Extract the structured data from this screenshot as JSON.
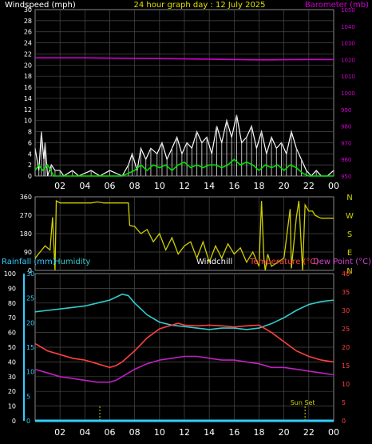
{
  "header": {
    "left": "Windspeed (mph)",
    "center": "24 hour graph day : 12 July 2025",
    "right": "Barometer (mb)"
  },
  "colors": {
    "background": "#000000",
    "panel_bg": "#000000",
    "grid": "#4a4a4a",
    "wind": "#ffffff",
    "wind_avg": "#00e000",
    "barometer": "#d000d0",
    "direction": "#d0d000",
    "rain": "#33ccff",
    "humidity": "#33cccc",
    "temperature": "#ff4040",
    "dewpoint": "#c020c0",
    "windchill": "#ffffff",
    "sun": "#d0d000"
  },
  "chart_data": [
    {
      "type": "line",
      "panel": "wind-barometer",
      "x_ticks": [
        "02",
        "04",
        "06",
        "08",
        "10",
        "12",
        "14",
        "16",
        "18",
        "20",
        "22",
        "00"
      ],
      "y_left": {
        "label": "Windspeed (mph)",
        "ticks": [
          "0",
          "2",
          "4",
          "6",
          "8",
          "10",
          "12",
          "14",
          "16",
          "18",
          "20",
          "22",
          "24",
          "26",
          "28",
          "30"
        ],
        "range": [
          0,
          30
        ]
      },
      "y_right": {
        "label": "Barometer (mb)",
        "ticks": [
          "950",
          "960",
          "970",
          "980",
          "990",
          "1000",
          "1010",
          "1020",
          "1030",
          "1040",
          "1050"
        ],
        "range": [
          950,
          1050
        ],
        "top_tick": "1050"
      },
      "x_range": [
        0,
        24
      ],
      "series": [
        {
          "name": "Windspeed (mph)",
          "role": "gust",
          "x": [
            0,
            0.3,
            0.5,
            0.7,
            0.8,
            1.0,
            1.3,
            1.6,
            2.0,
            2.3,
            3.0,
            3.5,
            4.5,
            5.2,
            6.0,
            7.0,
            7.5,
            7.8,
            8.2,
            8.5,
            8.9,
            9.3,
            9.8,
            10.2,
            10.6,
            11.0,
            11.4,
            11.8,
            12.2,
            12.6,
            13.0,
            13.4,
            13.8,
            14.2,
            14.6,
            15.0,
            15.4,
            15.8,
            16.2,
            16.6,
            17.0,
            17.4,
            17.8,
            18.2,
            18.6,
            19.0,
            19.4,
            19.8,
            20.2,
            20.6,
            21.0,
            21.4,
            21.8,
            22.2,
            22.6,
            23.0,
            23.5,
            24.0
          ],
          "values": [
            5,
            1,
            8,
            3,
            6,
            0,
            2,
            1,
            1,
            0,
            1,
            0,
            1,
            0,
            1,
            0,
            2,
            4,
            1,
            5,
            3,
            5,
            4,
            6,
            3,
            5,
            7,
            4,
            6,
            5,
            8,
            6,
            7,
            4,
            9,
            6,
            10,
            7,
            11,
            6,
            7,
            9,
            5,
            8,
            4,
            7,
            5,
            6,
            4,
            8,
            5,
            3,
            1,
            0,
            1,
            0,
            0,
            1
          ]
        },
        {
          "name": "Average",
          "role": "avg",
          "x": [
            0,
            0.3,
            0.6,
            1.0,
            1.5,
            2.0,
            3.0,
            4.0,
            5.0,
            6.0,
            7.0,
            7.5,
            8.0,
            8.5,
            9.0,
            9.5,
            10.0,
            10.5,
            11.0,
            11.5,
            12.0,
            12.5,
            13.0,
            13.5,
            14.0,
            14.5,
            15.0,
            15.5,
            16.0,
            16.5,
            17.0,
            17.5,
            18.0,
            18.5,
            19.0,
            19.5,
            20.0,
            20.5,
            21.0,
            21.5,
            22.0,
            23.0,
            24.0
          ],
          "values": [
            1,
            2,
            1,
            2,
            0,
            0,
            0,
            0,
            0,
            0,
            0,
            0.5,
            1,
            2,
            1,
            2,
            1.5,
            2,
            1,
            2,
            2.5,
            1.5,
            2,
            1.5,
            2,
            2,
            1.5,
            2,
            3,
            2,
            2.5,
            2,
            1,
            2,
            1.5,
            2,
            1,
            2,
            1.5,
            0.5,
            0,
            0,
            0
          ]
        },
        {
          "name": "Barometer (mb)",
          "axis": "right",
          "x": [
            0,
            2,
            4,
            6,
            8,
            10,
            12,
            14,
            16,
            18,
            19,
            20,
            22,
            24
          ],
          "values": [
            1021,
            1021,
            1021,
            1020.8,
            1020.7,
            1020.6,
            1020.4,
            1020.2,
            1020,
            1019.8,
            1019.8,
            1019.9,
            1020,
            1020
          ]
        }
      ]
    },
    {
      "type": "line",
      "panel": "wind-direction",
      "x_ticks": [
        "02",
        "04",
        "06",
        "08",
        "10",
        "12",
        "14",
        "16",
        "18",
        "20",
        "22",
        "00"
      ],
      "y_left": {
        "ticks": [
          "0",
          "90",
          "180",
          "270",
          "360"
        ],
        "range": [
          0,
          360
        ]
      },
      "y_right": {
        "ticks": [
          "N",
          "W",
          "S",
          "E",
          "N"
        ]
      },
      "x_range": [
        0,
        24
      ],
      "series": [
        {
          "name": "Direction",
          "x": [
            0,
            0.4,
            0.8,
            1.2,
            1.4,
            1.6,
            1.7,
            2.0,
            2.5,
            3.0,
            3.5,
            4.0,
            4.5,
            5.0,
            5.5,
            6.0,
            7.0,
            7.5,
            7.6,
            8.0,
            8.5,
            9.0,
            9.5,
            10.0,
            10.5,
            11.0,
            11.5,
            12.0,
            12.5,
            13.0,
            13.5,
            14.0,
            14.5,
            15.0,
            15.5,
            16.0,
            16.5,
            17.0,
            17.5,
            18.0,
            18.2,
            18.4,
            18.5,
            18.7,
            19.0,
            19.5,
            20.0,
            20.5,
            20.6,
            21.0,
            21.2,
            21.5,
            21.7,
            22.0,
            22.3,
            22.5,
            22.8,
            23.0,
            24.0
          ],
          "values": [
            60,
            90,
            120,
            100,
            260,
            0,
            340,
            330,
            330,
            330,
            330,
            330,
            330,
            335,
            330,
            330,
            330,
            330,
            220,
            215,
            180,
            200,
            140,
            180,
            100,
            160,
            80,
            120,
            140,
            60,
            140,
            40,
            120,
            60,
            130,
            80,
            110,
            40,
            90,
            20,
            340,
            50,
            0,
            80,
            20,
            40,
            60,
            300,
            10,
            260,
            340,
            0,
            320,
            290,
            290,
            270,
            260,
            255,
            255
          ]
        }
      ]
    },
    {
      "type": "line",
      "panel": "temperature-humidity",
      "legend": [
        "Rainfall (mm)",
        "Humidity",
        "Windchill",
        "Temperature (°C)",
        "Dew Point (°C)"
      ],
      "x_ticks": [
        "02",
        "04",
        "06",
        "08",
        "10",
        "12",
        "14",
        "16",
        "18",
        "20",
        "22",
        "00"
      ],
      "y_humidity": {
        "ticks": [
          "0",
          "10",
          "20",
          "30",
          "40",
          "50",
          "60",
          "70",
          "80",
          "90",
          "100"
        ],
        "range": [
          0,
          100
        ]
      },
      "y_rain": {
        "ticks": [
          "0",
          "5",
          "10",
          "15",
          "20",
          "25",
          "30"
        ],
        "range": [
          0,
          30
        ]
      },
      "y_temp": {
        "ticks": [
          "0",
          "5",
          "10",
          "15",
          "20",
          "25",
          "30",
          "35",
          "40"
        ],
        "range": [
          0,
          40
        ]
      },
      "x_range": [
        0,
        24
      ],
      "annotation": "Sun Set",
      "series": [
        {
          "name": "Humidity",
          "axis": "humidity",
          "x": [
            0,
            1,
            2,
            3,
            4,
            5,
            6,
            7,
            7.5,
            8,
            9,
            10,
            11,
            12,
            13,
            14,
            15,
            16,
            17,
            18,
            19,
            20,
            21,
            22,
            23,
            24
          ],
          "values": [
            74,
            75,
            76,
            77,
            78,
            80,
            82,
            86,
            85,
            80,
            72,
            67,
            65,
            64,
            63,
            62,
            63,
            63,
            62,
            63,
            66,
            70,
            75,
            79,
            81,
            82
          ]
        },
        {
          "name": "Temperature (°C)",
          "axis": "temp",
          "x": [
            0,
            1,
            2,
            3,
            4,
            5,
            5.5,
            6,
            6.5,
            7,
            8,
            9,
            10,
            11,
            11.5,
            12,
            13,
            14,
            15,
            16,
            17,
            18,
            19,
            20,
            21,
            22,
            23,
            24
          ],
          "values": [
            21,
            19,
            18,
            17,
            16.5,
            15.5,
            15,
            14.5,
            15,
            16,
            19,
            22.5,
            25,
            26,
            26.5,
            26,
            25.8,
            26,
            25.8,
            25.5,
            25.8,
            26,
            24,
            21.5,
            19,
            17.5,
            16.5,
            16
          ]
        },
        {
          "name": "Dew Point (°C)",
          "axis": "temp",
          "x": [
            0,
            1,
            2,
            3,
            4,
            5,
            6,
            6.5,
            7,
            8,
            9,
            10,
            11,
            12,
            13,
            14,
            15,
            16,
            17,
            18,
            19,
            20,
            21,
            22,
            23,
            24
          ],
          "values": [
            14,
            13,
            12,
            11.5,
            11,
            10.5,
            10.5,
            11,
            12,
            14,
            15.5,
            16.5,
            17,
            17.5,
            17.5,
            17,
            16.5,
            16.5,
            16,
            15.5,
            14.5,
            14.5,
            14,
            13.5,
            13,
            12.5
          ]
        },
        {
          "name": "Rainfall (mm)",
          "axis": "rain",
          "x": [
            0,
            24
          ],
          "values": [
            0,
            0
          ]
        }
      ],
      "markers": [
        {
          "label": "",
          "x": 5.2
        },
        {
          "label": "Sun Set",
          "x": 21.7
        }
      ]
    }
  ]
}
